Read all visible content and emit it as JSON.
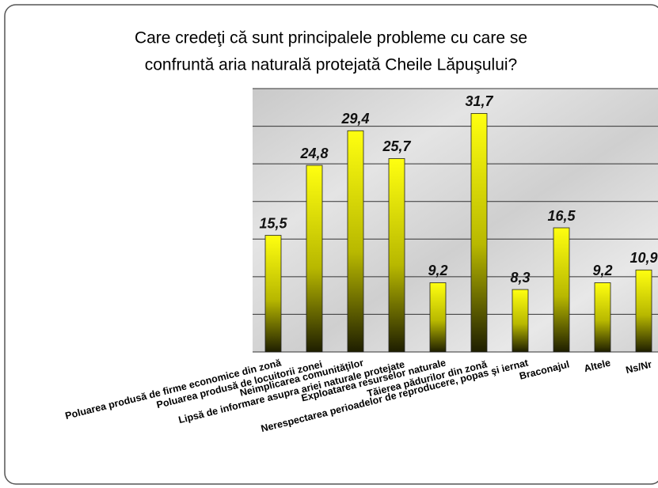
{
  "chart_data": {
    "type": "bar",
    "title": [
      "Care credeţi că sunt principalele probleme cu care se",
      "confruntă aria naturală protejată Cheile Lăpuşului?"
    ],
    "categories": [
      "Poluarea produsă de firme economice din zonă",
      "Poluarea produsă de locuitorii zonei",
      "Neimplicarea comunităţilor",
      "Lipsă de informare asupra ariei naturale protejate",
      "Exploatarea resurselor naturale",
      "Tăierea pădurilor din zonă",
      "Nerespectarea perioadelor de reproducere, popas şi iernat",
      "Braconajul",
      "Altele",
      "Ns/Nr"
    ],
    "values": [
      15.5,
      24.8,
      29.4,
      25.7,
      9.2,
      31.7,
      8.3,
      16.5,
      9.2,
      10.9
    ],
    "value_labels": [
      "15,5",
      "24,8",
      "29,4",
      "25,7",
      "9,2",
      "31,7",
      "8,3",
      "16,5",
      "9,2",
      "10,9"
    ],
    "color": "#f0f000",
    "ylim": [
      0,
      35
    ],
    "yticks": [
      0,
      5,
      10,
      15,
      20,
      25,
      30,
      35
    ],
    "grid": true
  }
}
